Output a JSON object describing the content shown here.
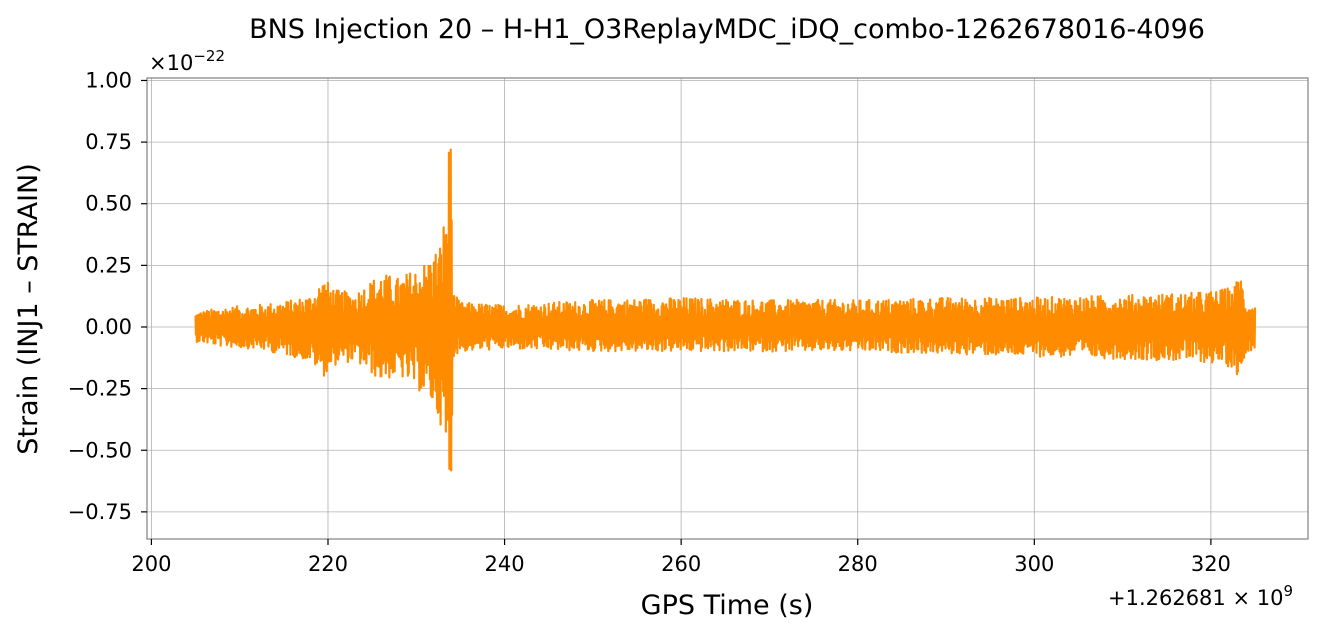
{
  "chart_data": {
    "type": "line",
    "title": "BNS Injection 20 – H-H1_O3ReplayMDC_iDQ_combo-1262678016-4096",
    "xlabel": "GPS Time (s)",
    "ylabel": "Strain (INJ1 – STRAIN)",
    "x_offset_label": "+1.262681 × 10",
    "x_offset_exponent": "9",
    "y_scale_label": "×10",
    "y_scale_exponent": "−22",
    "xlim": [
      199.5,
      331
    ],
    "ylim": [
      -0.86,
      1.01
    ],
    "xticks": [
      200,
      220,
      240,
      260,
      280,
      300,
      320
    ],
    "xtick_labels": [
      "200",
      "220",
      "240",
      "260",
      "280",
      "300",
      "320"
    ],
    "yticks": [
      -0.75,
      -0.5,
      -0.25,
      0.0,
      0.25,
      0.5,
      0.75,
      1.0
    ],
    "ytick_labels": [
      "−0.75",
      "−0.50",
      "−0.25",
      "0.00",
      "0.25",
      "0.50",
      "0.75",
      "1.00"
    ],
    "grid": true,
    "line_color": "#ff8c00",
    "series": [
      {
        "x_range": [
          205,
          325
        ],
        "envelope_x": [
          205,
          208,
          212,
          216,
          218,
          219.5,
          221,
          223,
          226,
          228,
          230,
          231.5,
          232.8,
          233.5,
          233.9,
          234.2,
          235,
          240,
          250,
          260,
          270,
          280,
          290,
          300,
          310,
          318,
          321,
          322.8,
          323.1,
          324,
          325
        ],
        "envelope_upper": [
          0.06,
          0.08,
          0.09,
          0.11,
          0.13,
          0.2,
          0.15,
          0.14,
          0.22,
          0.2,
          0.24,
          0.28,
          0.35,
          0.55,
          0.93,
          0.14,
          0.1,
          0.09,
          0.11,
          0.12,
          0.11,
          0.11,
          0.12,
          0.12,
          0.13,
          0.14,
          0.15,
          0.17,
          0.26,
          0.11,
          0.09
        ],
        "envelope_lower": [
          -0.06,
          -0.08,
          -0.09,
          -0.12,
          -0.14,
          -0.2,
          -0.15,
          -0.14,
          -0.22,
          -0.2,
          -0.25,
          -0.3,
          -0.4,
          -0.62,
          -0.77,
          -0.12,
          -0.1,
          -0.09,
          -0.1,
          -0.1,
          -0.1,
          -0.1,
          -0.11,
          -0.12,
          -0.13,
          -0.14,
          -0.15,
          -0.17,
          -0.22,
          -0.1,
          -0.09
        ]
      }
    ]
  }
}
